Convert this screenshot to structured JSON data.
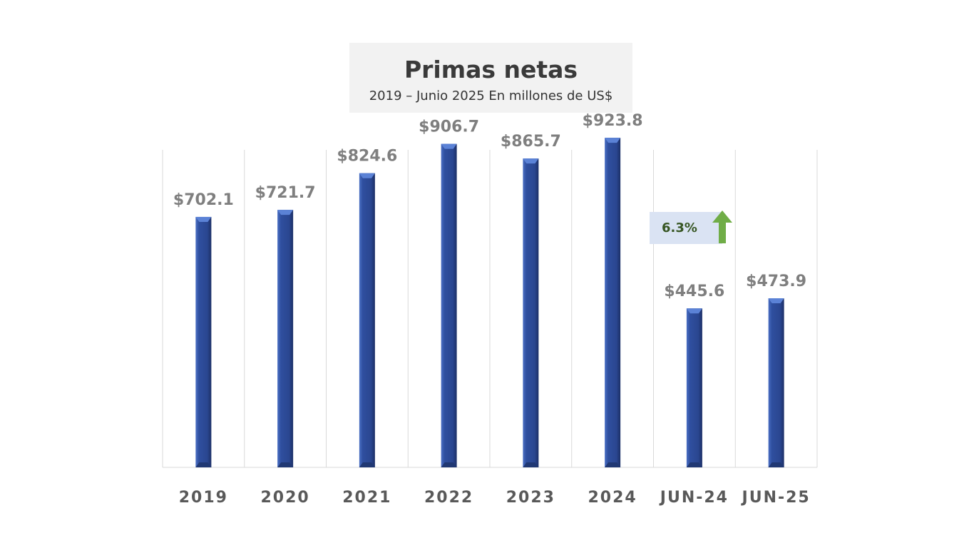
{
  "chart_data": {
    "type": "bar",
    "title": "Primas netas",
    "subtitle": "2019 – Junio 2025 En millones de US$",
    "categories": [
      "2019",
      "2020",
      "2021",
      "2022",
      "2023",
      "2024",
      "JUN-24",
      "JUN-25"
    ],
    "values": [
      702.1,
      721.7,
      824.6,
      906.7,
      865.7,
      923.8,
      445.6,
      473.9
    ],
    "value_labels": [
      "$702.1",
      "$721.7",
      "$824.6",
      "$906.7",
      "$865.7",
      "$923.8",
      "$445.6",
      "$473.9"
    ],
    "ylim": [
      0,
      1000
    ],
    "xlabel": "",
    "ylabel": "",
    "grid": "vertical",
    "bar_color": "#2f4f9f"
  },
  "annotation": {
    "growth_label": "6.3%",
    "arrow": "up-arrow-icon",
    "arrow_color": "#70ad47"
  }
}
